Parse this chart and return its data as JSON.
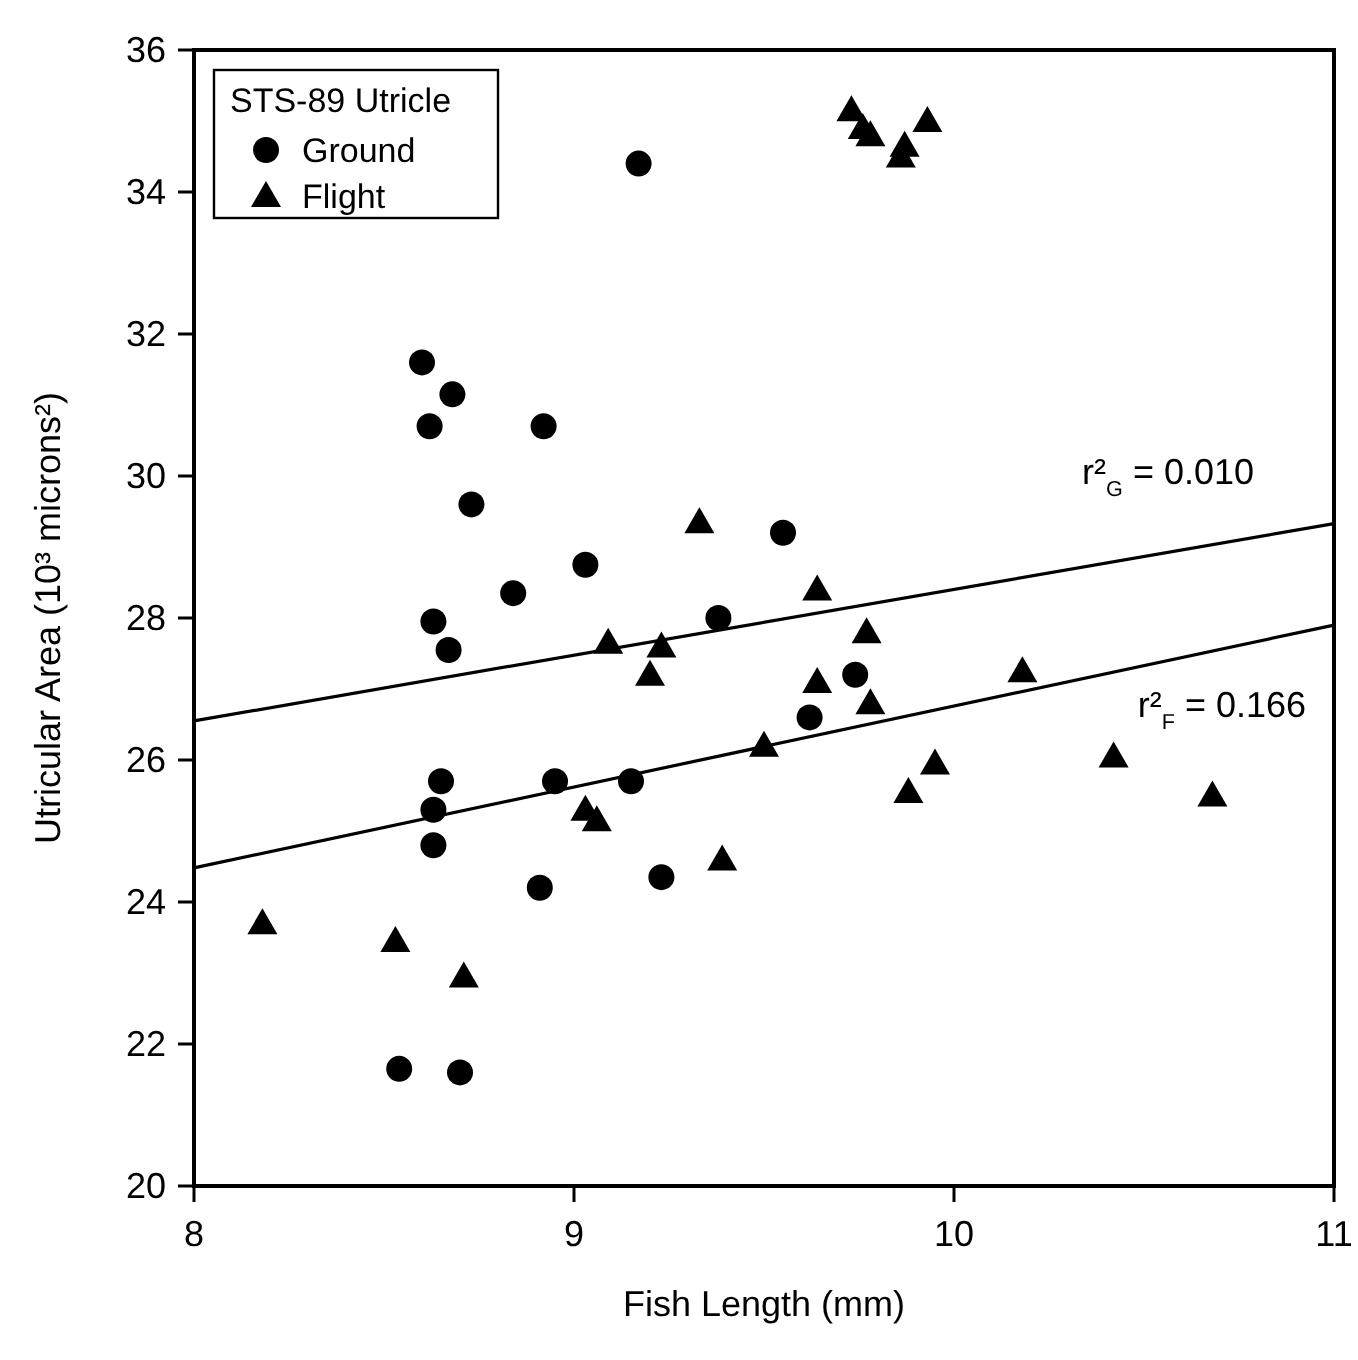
{
  "chart_data": {
    "type": "scatter",
    "xlabel": "Fish Length (mm)",
    "ylabel": "Utricular Area (10³ microns²)",
    "legend_title": "STS-89 Utricle",
    "legend": "top left",
    "grid": false,
    "xlim": [
      8,
      11
    ],
    "xticks": [
      8,
      9,
      10,
      11
    ],
    "ylim": [
      20,
      36
    ],
    "yticks": [
      20,
      22,
      24,
      26,
      28,
      30,
      32,
      34,
      36
    ],
    "series": [
      {
        "name": "Ground",
        "color": "#000000",
        "marker": "circle",
        "x": [
          8.6,
          8.68,
          8.62,
          8.92,
          8.73,
          9.03,
          8.84,
          9.55,
          8.63,
          8.67,
          9.38,
          9.17,
          9.74,
          9.62,
          8.65,
          8.95,
          9.15,
          8.63,
          8.63,
          8.91,
          9.23,
          8.54,
          8.7
        ],
        "values": [
          31.6,
          31.15,
          30.7,
          30.7,
          29.6,
          28.75,
          28.35,
          29.2,
          27.95,
          27.55,
          28.0,
          34.4,
          27.2,
          26.6,
          25.7,
          25.7,
          25.7,
          25.3,
          24.8,
          24.2,
          24.35,
          21.65,
          21.6
        ]
      },
      {
        "name": "Flight",
        "color": "#000000",
        "marker": "triangle",
        "x": [
          8.18,
          8.53,
          8.71,
          9.03,
          9.06,
          9.09,
          9.2,
          9.23,
          9.33,
          9.39,
          9.5,
          9.64,
          9.64,
          9.77,
          9.78,
          9.88,
          9.95,
          10.18,
          10.42,
          10.68,
          9.73,
          9.76,
          9.78,
          9.86,
          9.87,
          9.93
        ],
        "values": [
          23.7,
          23.45,
          22.95,
          25.3,
          25.15,
          27.65,
          27.2,
          27.6,
          29.35,
          24.6,
          26.2,
          28.4,
          27.1,
          27.8,
          26.8,
          25.55,
          25.95,
          27.25,
          26.05,
          25.5,
          35.15,
          34.9,
          34.8,
          34.5,
          34.65,
          35.0
        ]
      },
      {
        "type": "line",
        "color": "#000000",
        "marker": "none",
        "x": [
          8,
          11
        ],
        "values": [
          26.55,
          29.33
        ]
      },
      {
        "type": "line",
        "color": "#000000",
        "marker": "none",
        "x": [
          8,
          11
        ],
        "values": [
          24.48,
          27.9
        ]
      }
    ],
    "annotations": [
      "r²$_{G}$ = 0.010",
      "r²$_{F}$ = 0.166"
    ]
  }
}
